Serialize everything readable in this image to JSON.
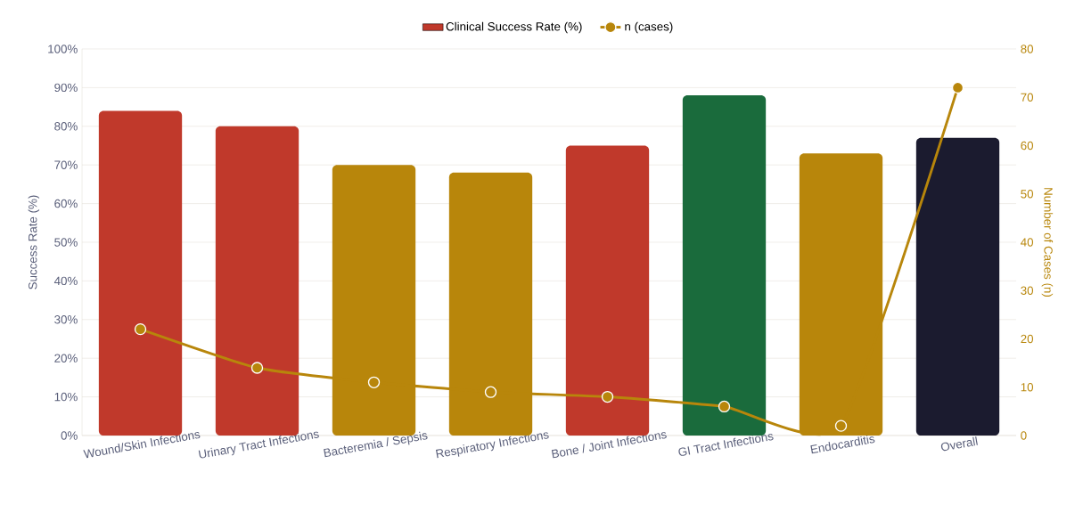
{
  "chart_data": {
    "type": "bar",
    "categories": [
      "Wound/Skin Infections",
      "Urinary Tract Infections",
      "Bacteremia / Sepsis",
      "Respiratory Infections",
      "Bone / Joint Infections",
      "GI Tract Infections",
      "Endocarditis",
      "Overall"
    ],
    "series": [
      {
        "name": "Clinical Success Rate (%)",
        "color": "#c0392b",
        "colors": [
          "#c0392b",
          "#c0392b",
          "#b8860b",
          "#b8860b",
          "#c0392b",
          "#1a6b3c",
          "#b8860b",
          "#1b1b2f"
        ],
        "values": [
          84,
          80,
          70,
          68,
          75,
          88,
          73,
          77
        ]
      },
      {
        "name": "n (cases)",
        "type": "line",
        "axis": "y2",
        "color": "#b8860b",
        "values": [
          22,
          14,
          11,
          9,
          8,
          6,
          2,
          72
        ]
      }
    ],
    "ylim": [
      0,
      100
    ],
    "yticks": [
      {
        "value": 0,
        "label": "0%"
      },
      {
        "value": 10,
        "label": "10%"
      },
      {
        "value": 20,
        "label": "20%"
      },
      {
        "value": 30,
        "label": "30%"
      },
      {
        "value": 40,
        "label": "40%"
      },
      {
        "value": 50,
        "label": "50%"
      },
      {
        "value": 60,
        "label": "60%"
      },
      {
        "value": 70,
        "label": "70%"
      },
      {
        "value": 80,
        "label": "80%"
      },
      {
        "value": 90,
        "label": "90%"
      },
      {
        "value": 100,
        "label": "100%"
      }
    ],
    "y2lim": [
      0,
      80
    ],
    "y2ticks": [
      0,
      10,
      20,
      30,
      40,
      50,
      60,
      70,
      80
    ],
    "ylabel": "Success Rate (%)",
    "y2label": "Number of Cases (n)",
    "legend": "top",
    "grid": "y",
    "marker": "circle"
  }
}
